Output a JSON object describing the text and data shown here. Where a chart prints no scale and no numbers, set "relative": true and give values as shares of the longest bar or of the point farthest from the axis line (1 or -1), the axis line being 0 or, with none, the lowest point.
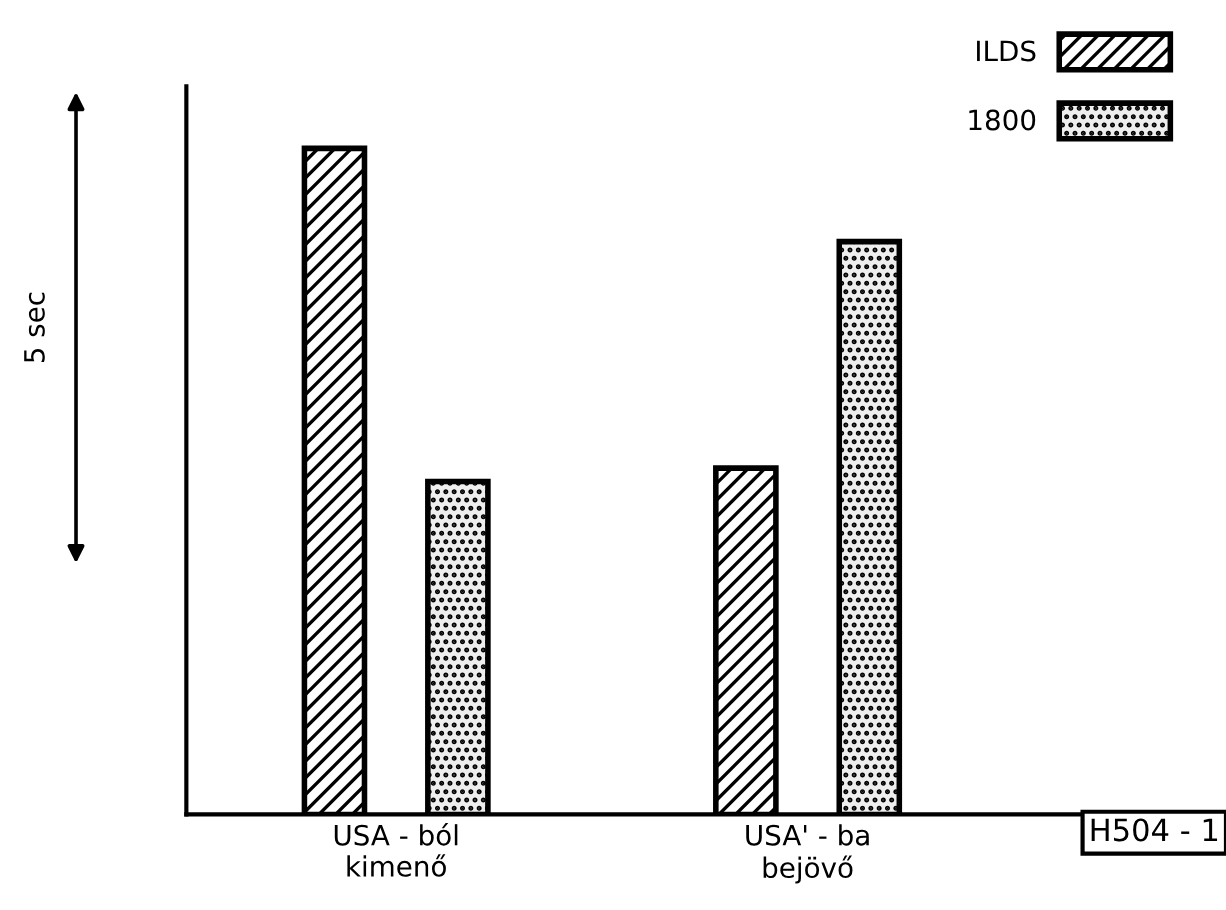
{
  "chart_data": {
    "type": "bar",
    "relative": true,
    "categories": [
      "USA - ból\nkimenő",
      "USA' - ba\nbejövő"
    ],
    "series": [
      {
        "name": "ILDS",
        "color": "#000000",
        "values": [
          1,
          0.52
        ]
      },
      {
        "name": "1800",
        "color": "#000000",
        "values": [
          0.5,
          0.86
        ]
      }
    ],
    "legend": "top right",
    "annotations": [
      "5 sec",
      "H504 - 1"
    ]
  }
}
